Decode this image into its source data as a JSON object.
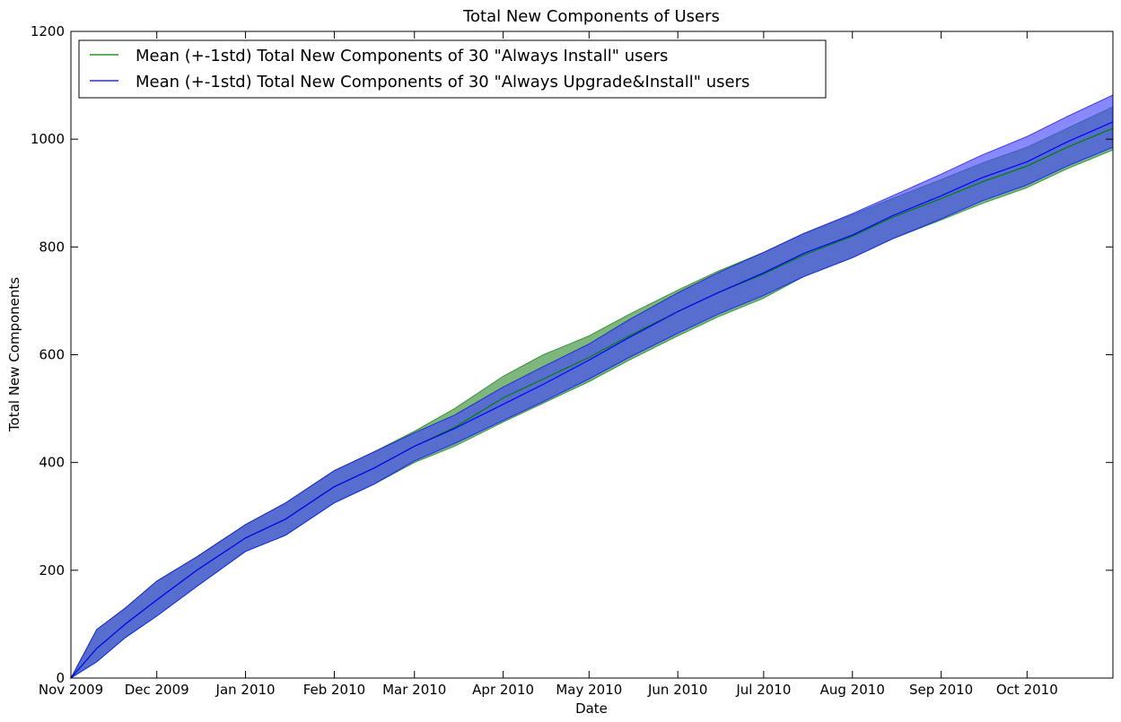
{
  "chart_data": {
    "type": "area",
    "title": "Total New Components of Users",
    "xlabel": "Date",
    "ylabel": "Total New Components",
    "xlim": [
      "2009-11-01",
      "2010-10-31"
    ],
    "ylim": [
      0,
      1200
    ],
    "x_ticks": [
      {
        "date": "2009-11-01",
        "label": "Nov 2009"
      },
      {
        "date": "2009-12-01",
        "label": "Dec 2009"
      },
      {
        "date": "2010-01-01",
        "label": "Jan 2010"
      },
      {
        "date": "2010-02-01",
        "label": "Feb 2010"
      },
      {
        "date": "2010-03-01",
        "label": "Mar 2010"
      },
      {
        "date": "2010-04-01",
        "label": "Apr 2010"
      },
      {
        "date": "2010-05-01",
        "label": "May 2010"
      },
      {
        "date": "2010-06-01",
        "label": "Jun 2010"
      },
      {
        "date": "2010-07-01",
        "label": "Jul 2010"
      },
      {
        "date": "2010-08-01",
        "label": "Aug 2010"
      },
      {
        "date": "2010-09-01",
        "label": "Sep 2010"
      },
      {
        "date": "2010-10-01",
        "label": "Oct 2010"
      }
    ],
    "y_ticks": [
      0,
      200,
      400,
      600,
      800,
      1000,
      1200
    ],
    "grid": false,
    "legend_position": "top-left",
    "series": [
      {
        "name": "Mean (+-1std) Total New Components of 30 \"Always Install\" users",
        "line_color": "#008000",
        "band_color": "#2e8b2e",
        "x": [
          "2009-11-01",
          "2009-11-10",
          "2009-11-20",
          "2009-12-01",
          "2009-12-15",
          "2010-01-01",
          "2010-01-15",
          "2010-02-01",
          "2010-02-15",
          "2010-03-01",
          "2010-03-15",
          "2010-04-01",
          "2010-04-15",
          "2010-05-01",
          "2010-05-15",
          "2010-06-01",
          "2010-06-15",
          "2010-07-01",
          "2010-07-15",
          "2010-08-01",
          "2010-08-15",
          "2010-09-01",
          "2010-09-15",
          "2010-10-01",
          "2010-10-15",
          "2010-10-31"
        ],
        "mean": [
          0,
          55,
          100,
          145,
          200,
          260,
          295,
          355,
          390,
          430,
          465,
          520,
          555,
          595,
          635,
          680,
          715,
          750,
          785,
          820,
          855,
          890,
          920,
          950,
          985,
          1020
        ],
        "upper": [
          0,
          90,
          130,
          180,
          225,
          285,
          325,
          385,
          420,
          458,
          500,
          560,
          600,
          635,
          675,
          720,
          755,
          790,
          825,
          860,
          890,
          925,
          955,
          985,
          1020,
          1060
        ],
        "lower": [
          0,
          30,
          75,
          115,
          170,
          235,
          265,
          325,
          360,
          400,
          430,
          475,
          510,
          550,
          590,
          635,
          670,
          705,
          745,
          780,
          815,
          850,
          880,
          910,
          945,
          980
        ]
      },
      {
        "name": "Mean (+-1std) Total New Components of 30 \"Always Upgrade&Install\" users",
        "line_color": "#0000ff",
        "band_color": "#4040ff",
        "x": [
          "2009-11-01",
          "2009-11-10",
          "2009-11-20",
          "2009-12-01",
          "2009-12-15",
          "2010-01-01",
          "2010-01-15",
          "2010-02-01",
          "2010-02-15",
          "2010-03-01",
          "2010-03-15",
          "2010-04-01",
          "2010-04-15",
          "2010-05-01",
          "2010-05-15",
          "2010-06-01",
          "2010-06-15",
          "2010-07-01",
          "2010-07-15",
          "2010-08-01",
          "2010-08-15",
          "2010-09-01",
          "2010-09-15",
          "2010-10-01",
          "2010-10-15",
          "2010-10-31"
        ],
        "mean": [
          0,
          55,
          100,
          145,
          200,
          260,
          295,
          355,
          390,
          430,
          463,
          508,
          545,
          590,
          632,
          680,
          715,
          752,
          788,
          822,
          858,
          895,
          928,
          958,
          995,
          1032
        ],
        "upper": [
          0,
          90,
          130,
          180,
          225,
          285,
          325,
          385,
          420,
          455,
          488,
          540,
          578,
          620,
          665,
          715,
          752,
          790,
          825,
          862,
          895,
          935,
          970,
          1005,
          1042,
          1082
        ],
        "lower": [
          0,
          30,
          75,
          115,
          170,
          235,
          265,
          325,
          360,
          403,
          435,
          478,
          513,
          555,
          595,
          640,
          675,
          710,
          745,
          780,
          815,
          852,
          885,
          915,
          950,
          985
        ]
      }
    ]
  }
}
